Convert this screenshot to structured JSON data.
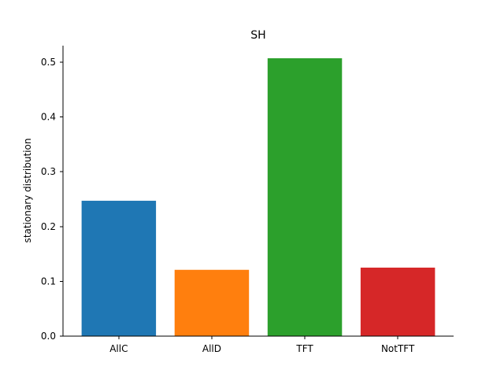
{
  "chart_data": {
    "type": "bar",
    "title": "SH",
    "xlabel": "",
    "ylabel": "stationary distribution",
    "categories": [
      "AllC",
      "AllD",
      "TFT",
      "NotTFT"
    ],
    "values": [
      0.247,
      0.121,
      0.507,
      0.125
    ],
    "colors": [
      "#1f77b4",
      "#ff7f0e",
      "#2ca02c",
      "#d62728"
    ],
    "ylim": [
      0,
      0.53
    ],
    "yticks": [
      0.0,
      0.1,
      0.2,
      0.3,
      0.4,
      0.5
    ],
    "ytick_labels": [
      "0.0",
      "0.1",
      "0.2",
      "0.3",
      "0.4",
      "0.5"
    ],
    "grid": false,
    "spines": [
      "left",
      "bottom"
    ]
  }
}
